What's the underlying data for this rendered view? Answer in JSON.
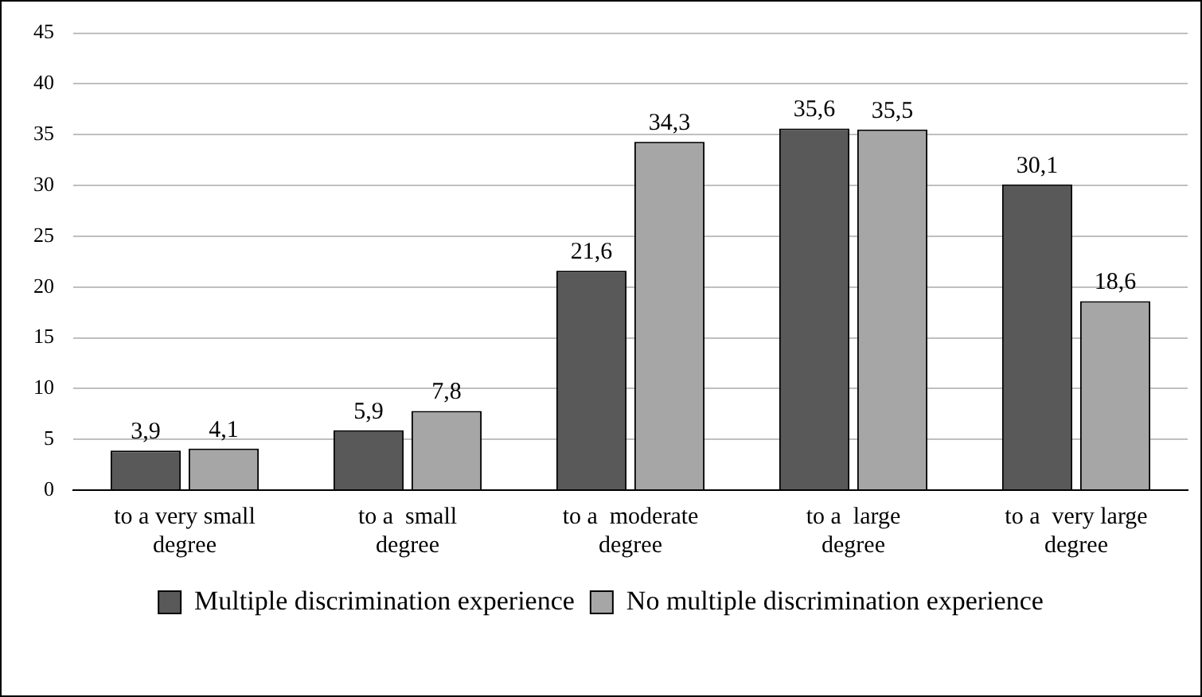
{
  "chart_data": {
    "type": "bar",
    "categories": [
      "to a very small degree",
      "to a  small degree",
      "to a  moderate degree",
      "to a  large degree",
      "to a  very large degree"
    ],
    "series": [
      {
        "name": "Multiple discrimination experience",
        "color": "#595959",
        "values": [
          3.9,
          5.9,
          21.6,
          35.6,
          30.1
        ],
        "value_labels": [
          "3,9",
          "5,9",
          "21,6",
          "35,6",
          "30,1"
        ]
      },
      {
        "name": "No multiple discrimination experience",
        "color": "#a6a6a6",
        "values": [
          4.1,
          7.8,
          34.3,
          35.5,
          18.6
        ],
        "value_labels": [
          "4,1",
          "7,8",
          "34,3",
          "35,5",
          "18,6"
        ]
      }
    ],
    "ylim": [
      0,
      45
    ],
    "yticks": [
      0,
      5,
      10,
      15,
      20,
      25,
      30,
      35,
      40,
      45
    ],
    "grid": "y",
    "legend": "bottom"
  }
}
